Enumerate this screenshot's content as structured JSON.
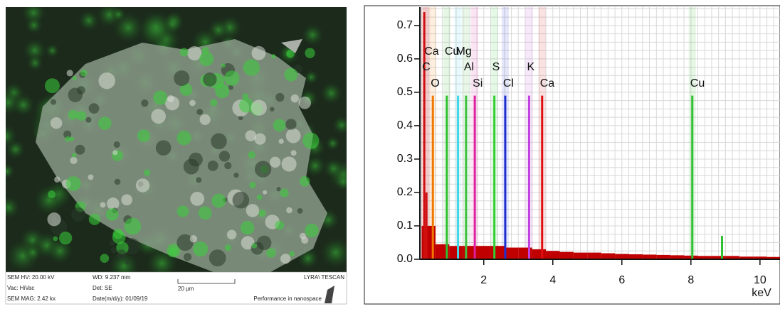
{
  "sem_image": {
    "hv": "SEM HV: 20.00 kV",
    "wd": "WD: 9.237 mm",
    "brand": "LYRA\\ TESCAN",
    "vac": "Vac: HiVac",
    "det": "Det: SE",
    "scale": "20 µm",
    "mag": "SEM MAG: 2.42 kx",
    "date": "Date(m/d/y): 01/09/19",
    "slogan": "Performance in nanospace"
  },
  "chart_data": {
    "type": "spectrum",
    "x_label": "keV",
    "xlim": [
      0.15,
      10.58
    ],
    "xticks": [
      2,
      4,
      6,
      8,
      10
    ],
    "ylim": [
      0,
      0.755
    ],
    "yticks": [
      {
        "value": 0,
        "label": "0.0"
      },
      0.1,
      0.2,
      0.3,
      0.4,
      0.5,
      0.6,
      0.7
    ],
    "grid": true,
    "peaks": {
      "labels": [
        "Ca",
        "C",
        "O",
        "Cu",
        "Mg",
        "Al",
        "Si",
        "S",
        "Cl",
        "K",
        "Ca",
        "Cu",
        null
      ],
      "x": [
        0.34,
        0.277,
        0.525,
        0.93,
        1.254,
        1.487,
        1.74,
        2.307,
        2.622,
        3.313,
        3.69,
        8.04,
        8.9
      ],
      "values": [
        0.2,
        0.74,
        0.49,
        0.49,
        0.49,
        0.49,
        0.49,
        0.49,
        0.49,
        0.49,
        0.49,
        0.49,
        0.07
      ],
      "colors": [
        "#d01010",
        "#d01010",
        "#f07800",
        "#30c030",
        "#40d8e8",
        "#40c040",
        "#e020a0",
        "#30d030",
        "#2030d0",
        "#c040e0",
        "#e01010",
        "#30c030",
        "#30c030"
      ]
    },
    "background": {
      "color": "#c00000",
      "x": [
        0.2,
        0.6,
        1.0,
        1.4,
        1.8,
        2.2,
        2.6,
        3.0,
        3.4,
        3.8,
        4.2,
        4.6,
        5.0,
        5.4,
        5.8,
        6.2,
        6.6,
        7.0,
        7.4,
        7.8,
        8.2,
        8.6,
        9.0,
        9.4,
        9.8,
        10.2
      ],
      "values": [
        0.1,
        0.045,
        0.04,
        0.04,
        0.04,
        0.04,
        0.035,
        0.035,
        0.03,
        0.025,
        0.022,
        0.02,
        0.02,
        0.018,
        0.016,
        0.015,
        0.014,
        0.013,
        0.012,
        0.011,
        0.01,
        0.01,
        0.01,
        0.008,
        0.008,
        0.007
      ]
    }
  }
}
